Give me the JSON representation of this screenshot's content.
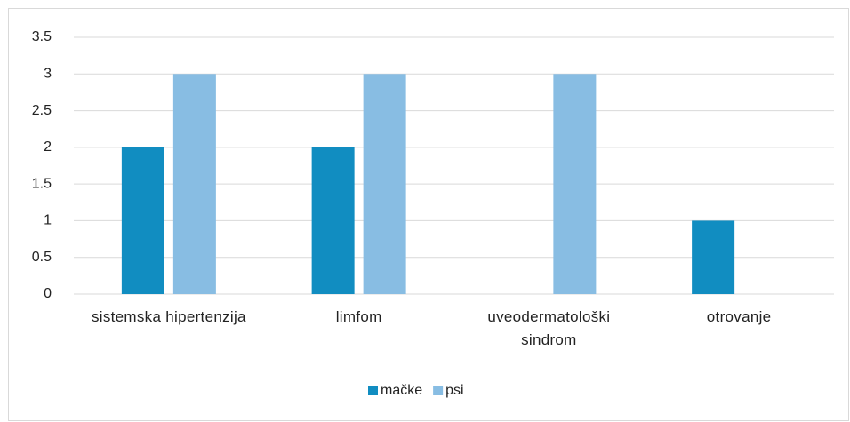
{
  "chart_data": {
    "type": "bar",
    "categories": [
      "sistemska hipertenzija",
      "limfom",
      "uveodermatološki sindrom",
      "otrovanje"
    ],
    "series": [
      {
        "name": "mačke",
        "color": "#118dc1",
        "values": [
          2,
          2,
          0,
          1
        ]
      },
      {
        "name": "psi",
        "color": "#88bde3",
        "values": [
          3,
          3,
          3,
          0
        ]
      }
    ],
    "ylim": [
      0,
      3.5
    ],
    "yticks": [
      0,
      0.5,
      1,
      1.5,
      2,
      2.5,
      3,
      3.5
    ],
    "grid": true,
    "legend": "bottom"
  }
}
